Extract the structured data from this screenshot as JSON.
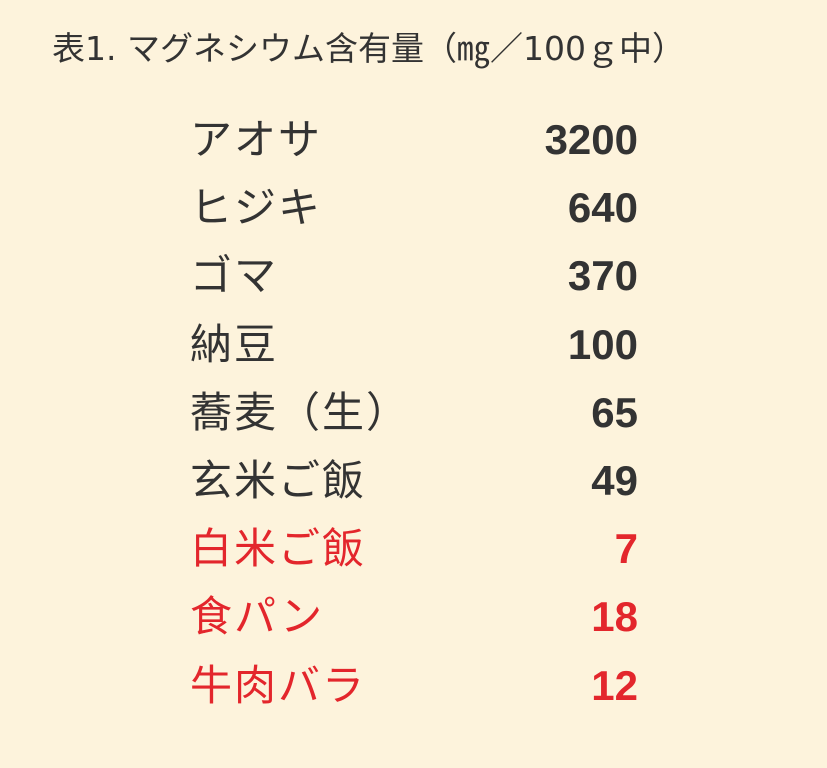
{
  "title": "表1. マグネシウム含有量（㎎／100ｇ中）",
  "table": {
    "rows": [
      {
        "name": "アオサ",
        "value": 3200,
        "color": "#333333"
      },
      {
        "name": "ヒジキ",
        "value": 640,
        "color": "#333333"
      },
      {
        "name": "ゴマ",
        "value": 370,
        "color": "#333333"
      },
      {
        "name": "納豆",
        "value": 100,
        "color": "#333333"
      },
      {
        "name": "蕎麦（生）",
        "value": 65,
        "color": "#333333"
      },
      {
        "name": "玄米ご飯",
        "value": 49,
        "color": "#333333"
      },
      {
        "name": "白米ご飯",
        "value": 7,
        "color": "#e3262c"
      },
      {
        "name": "食パン",
        "value": 18,
        "color": "#e3262c"
      },
      {
        "name": "牛肉バラ",
        "value": 12,
        "color": "#e3262c"
      }
    ]
  }
}
